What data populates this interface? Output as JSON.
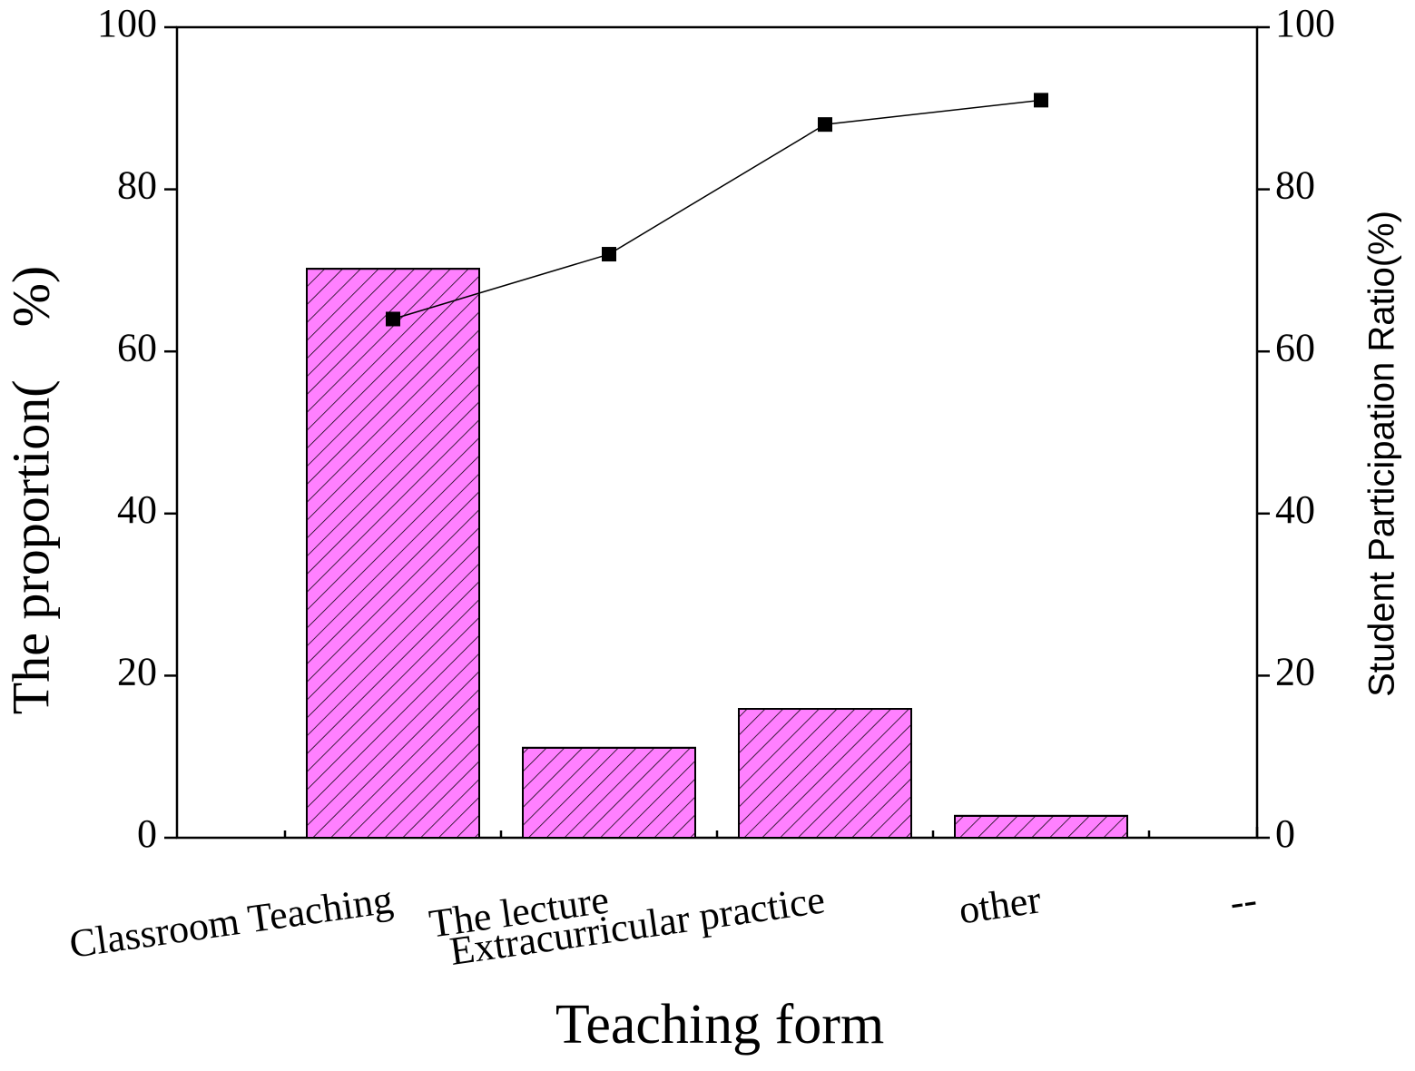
{
  "chart_data": {
    "type": "bar",
    "x_label": "Teaching form",
    "y_label": "The proportion(　%)",
    "y2_label": "Student Participation Ratio(%)",
    "categories": [
      "Classroom Teaching",
      "The lecture",
      "Extracurricular practice",
      "other",
      "--"
    ],
    "series": [
      {
        "type": "bar",
        "color": "#ff80ff",
        "values": [
          70.2,
          11.1,
          15.9,
          2.7,
          null
        ]
      },
      {
        "type": "line",
        "axis": "y2",
        "color": "#000000",
        "values": [
          64,
          72,
          88,
          91,
          null
        ]
      }
    ],
    "ylim": [
      0,
      100
    ],
    "yticks": [
      0,
      20,
      40,
      60,
      80,
      100
    ],
    "y2lim": [
      0,
      100
    ],
    "y2ticks": [
      0,
      20,
      40,
      60,
      80,
      100
    ]
  }
}
